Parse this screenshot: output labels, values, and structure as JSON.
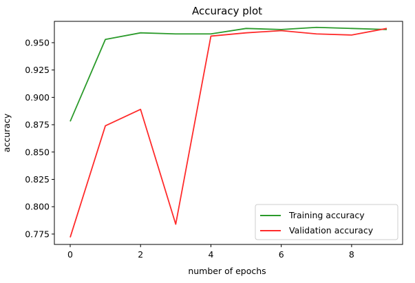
{
  "chart_data": {
    "type": "line",
    "title": "Accuracy plot",
    "xlabel": "number of epochs",
    "ylabel": "accuracy",
    "xlim": [
      -0.45,
      9.45
    ],
    "ylim": [
      0.7655,
      0.9695
    ],
    "xticks": [
      0,
      2,
      4,
      6,
      8
    ],
    "yticks": [
      0.775,
      0.8,
      0.825,
      0.85,
      0.875,
      0.9,
      0.925,
      0.95
    ],
    "ytick_labels": [
      "0.775",
      "0.800",
      "0.825",
      "0.850",
      "0.875",
      "0.900",
      "0.925",
      "0.950"
    ],
    "x": [
      0,
      1,
      2,
      3,
      4,
      5,
      6,
      7,
      8,
      9
    ],
    "series": [
      {
        "name": "Training accuracy",
        "color": "#2a9a2a",
        "values": [
          0.878,
          0.953,
          0.959,
          0.958,
          0.958,
          0.963,
          0.962,
          0.964,
          0.963,
          0.962
        ]
      },
      {
        "name": "Validation accuracy",
        "color": "#ff2a2a",
        "values": [
          0.772,
          0.874,
          0.889,
          0.784,
          0.956,
          0.959,
          0.961,
          0.958,
          0.957,
          0.963
        ]
      }
    ],
    "grid": false,
    "legend_position": "bottom-right"
  }
}
